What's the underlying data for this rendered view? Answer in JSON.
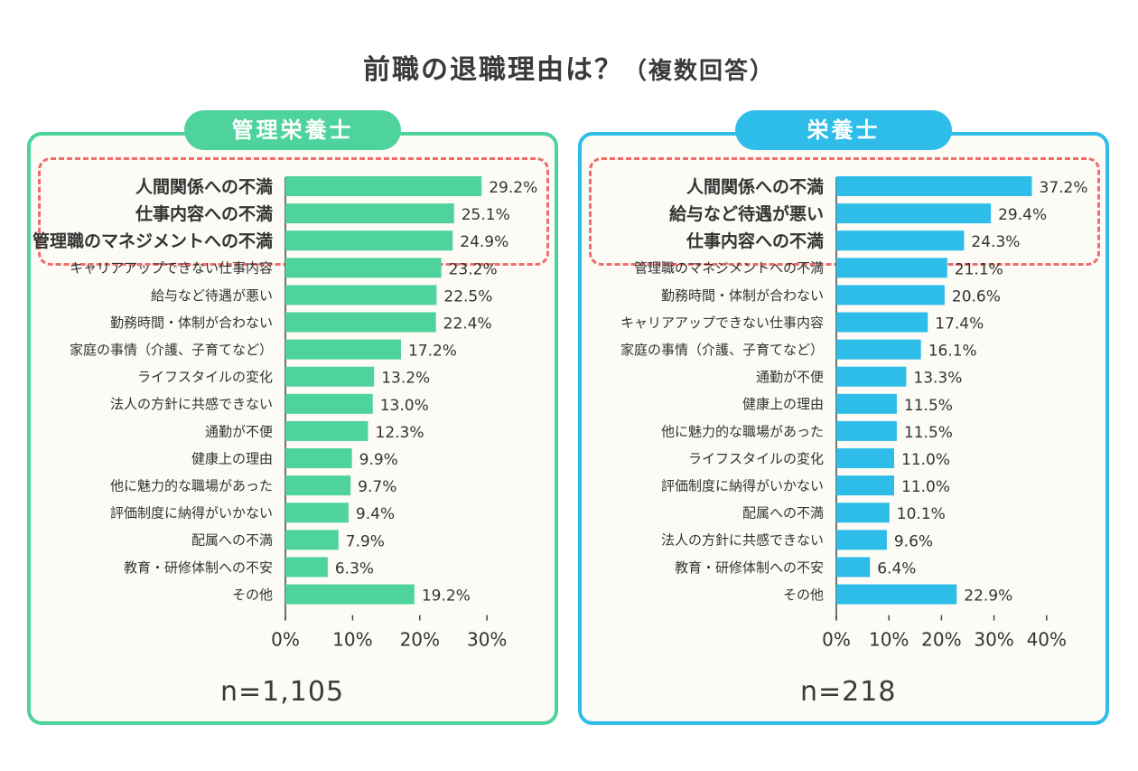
{
  "title": "前職の退職理由は？",
  "subtitle": "（複数回答）",
  "colors": {
    "left": "#4fd39d",
    "right": "#2ebde8",
    "highlight": "#ef6d6d"
  },
  "chart_data": [
    {
      "type": "bar",
      "orientation": "horizontal",
      "title": "管理栄養士",
      "n_label": "n=1,105",
      "categories": [
        "人間関係への不満",
        "仕事内容への不満",
        "管理職のマネジメントへの不満",
        "キャリアアップできない仕事内容",
        "給与など待遇が悪い",
        "勤務時間・体制が合わない",
        "家庭の事情（介護、子育てなど）",
        "ライフスタイルの変化",
        "法人の方針に共感できない",
        "通勤が不便",
        "健康上の理由",
        "他に魅力的な職場があった",
        "評価制度に納得がいかない",
        "配属への不満",
        "教育・研修体制への不安",
        "その他"
      ],
      "values": [
        29.2,
        25.1,
        24.9,
        23.2,
        22.5,
        22.4,
        17.2,
        13.2,
        13.0,
        12.3,
        9.9,
        9.7,
        9.4,
        7.9,
        6.3,
        19.2
      ],
      "value_labels": [
        "29.2%",
        "25.1%",
        "24.9%",
        "23.2%",
        "22.5%",
        "22.4%",
        "17.2%",
        "13.2%",
        "13.0%",
        "12.3%",
        "9.9%",
        "9.7%",
        "9.4%",
        "7.9%",
        "6.3%",
        "19.2%"
      ],
      "xlim": [
        0,
        30
      ],
      "ticks": [
        0,
        10,
        20,
        30
      ],
      "tick_labels": [
        "0%",
        "10%",
        "20%",
        "30%"
      ],
      "highlighted_top": 3,
      "color": "#4fd39d"
    },
    {
      "type": "bar",
      "orientation": "horizontal",
      "title": "栄養士",
      "n_label": "n=218",
      "categories": [
        "人間関係への不満",
        "給与など待遇が悪い",
        "仕事内容への不満",
        "管理職のマネジメントへの不満",
        "勤務時間・体制が合わない",
        "キャリアアップできない仕事内容",
        "家庭の事情（介護、子育てなど）",
        "通勤が不便",
        "健康上の理由",
        "他に魅力的な職場があった",
        "ライフスタイルの変化",
        "評価制度に納得がいかない",
        "配属への不満",
        "法人の方針に共感できない",
        "教育・研修体制への不安",
        "その他"
      ],
      "values": [
        37.2,
        29.4,
        24.3,
        21.1,
        20.6,
        17.4,
        16.1,
        13.3,
        11.5,
        11.5,
        11.0,
        11.0,
        10.1,
        9.6,
        6.4,
        22.9
      ],
      "value_labels": [
        "37.2%",
        "29.4%",
        "24.3%",
        "21.1%",
        "20.6%",
        "17.4%",
        "16.1%",
        "13.3%",
        "11.5%",
        "11.5%",
        "11.0%",
        "11.0%",
        "10.1%",
        "9.6%",
        "6.4%",
        "22.9%"
      ],
      "xlim": [
        0,
        40
      ],
      "ticks": [
        0,
        10,
        20,
        30,
        40
      ],
      "tick_labels": [
        "0%",
        "10%",
        "20%",
        "30%",
        "40%"
      ],
      "highlighted_top": 3,
      "color": "#2ebde8"
    }
  ]
}
